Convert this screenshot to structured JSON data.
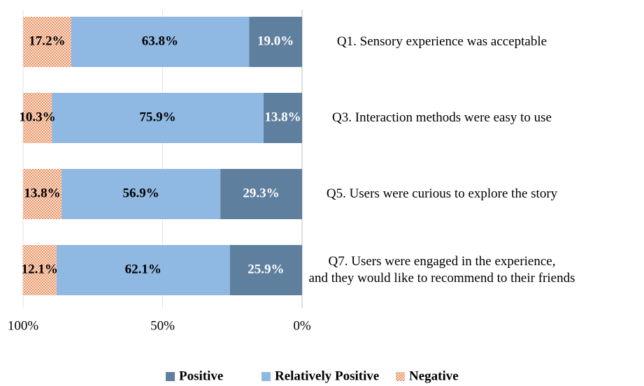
{
  "chart_data": {
    "type": "stacked-bar-horizontal",
    "categories": [
      "Q1. Sensory experience was acceptable",
      "Q3. Interaction methods were easy to use",
      "Q5. Users were curious to explore the story",
      "Q7. Users were engaged in the experience,\nand they would like to recommend to their friends"
    ],
    "series": [
      {
        "name": "Positive",
        "color": "#5f7f9f",
        "values": [
          19.0,
          13.8,
          29.3,
          25.9
        ],
        "value_labels": [
          "19.0%",
          "13.8%",
          "29.3%",
          "25.9%"
        ]
      },
      {
        "name": "Relatively Positive",
        "color": "#8fb8e2",
        "values": [
          63.8,
          75.9,
          56.9,
          62.1
        ],
        "value_labels": [
          "63.8%",
          "75.9%",
          "56.9%",
          "62.1%"
        ]
      },
      {
        "name": "Negative",
        "color": "#f2a87a",
        "pattern": "checker",
        "values": [
          17.2,
          10.3,
          13.8,
          12.1
        ],
        "value_labels": [
          "17.2%",
          "10.3%",
          "13.8%",
          "12.1%"
        ]
      }
    ],
    "xlim": [
      100,
      0
    ],
    "xticks": [
      {
        "value": 100,
        "label": "100%"
      },
      {
        "value": 50,
        "label": "50%"
      },
      {
        "value": 0,
        "label": "0%"
      }
    ],
    "grid": true,
    "legend": "bottom"
  }
}
